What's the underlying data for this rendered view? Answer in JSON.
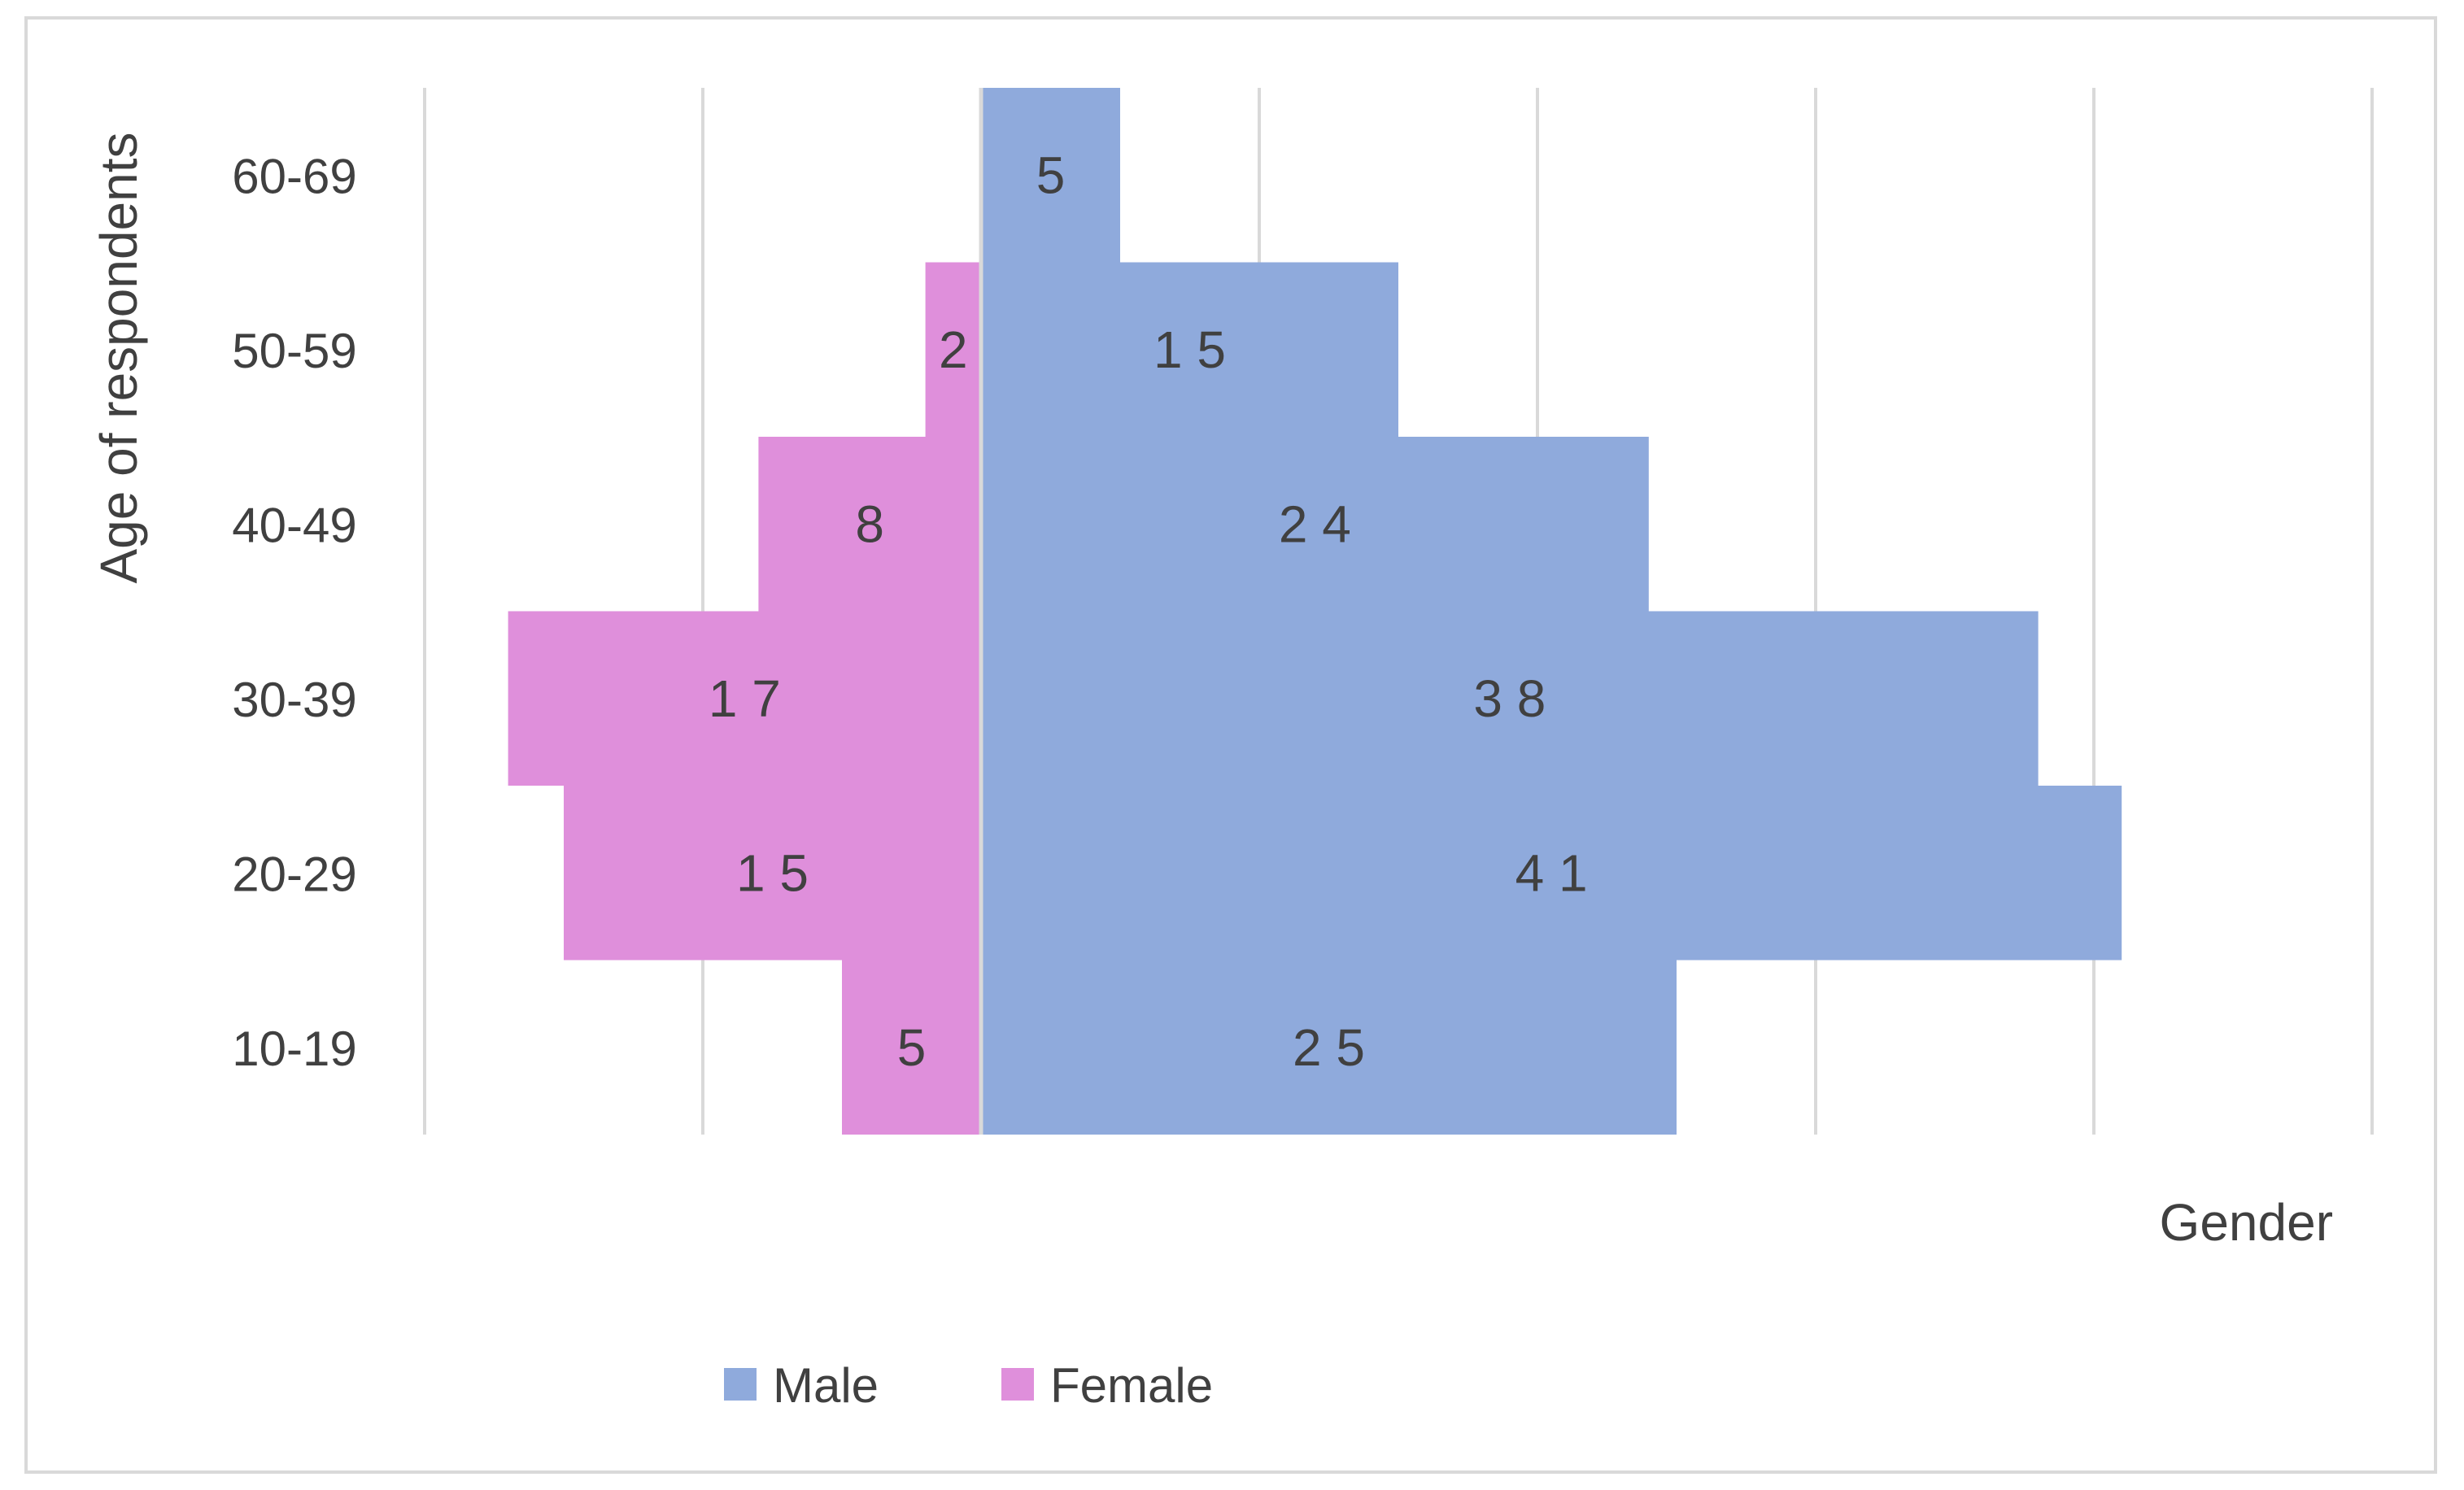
{
  "chart_data": {
    "type": "bar",
    "subtype": "population-pyramid",
    "orientation": "horizontal",
    "categories": [
      "10-19",
      "20-29",
      "30-39",
      "40-49",
      "50-59",
      "60-69"
    ],
    "series": [
      {
        "name": "Male",
        "values": [
          25,
          41,
          38,
          24,
          15,
          5
        ],
        "color": "#8faadc",
        "side": "right"
      },
      {
        "name": "Female",
        "values": [
          5,
          15,
          17,
          8,
          2,
          0
        ],
        "color": "#df8fdb",
        "side": "left"
      }
    ],
    "data_labels": {
      "Male": [
        "2 5",
        "4 1",
        "3 8",
        "2 4",
        "1 5",
        "5"
      ],
      "Female": [
        "5",
        "1 5",
        "1 7",
        "8",
        "2",
        ""
      ]
    },
    "title": "",
    "xlabel": "Gender",
    "ylabel": "Age of respondents",
    "xlim": [
      -20,
      50
    ],
    "x_gridline_step": 10,
    "grid": "vertical",
    "legend": {
      "position": "bottom",
      "entries": [
        "Male",
        "Female"
      ]
    },
    "colors": {
      "gridline": "#d9d9d9",
      "text": "#404040",
      "frame": "#d9d9d9",
      "axis": "#d9d9d9"
    }
  }
}
